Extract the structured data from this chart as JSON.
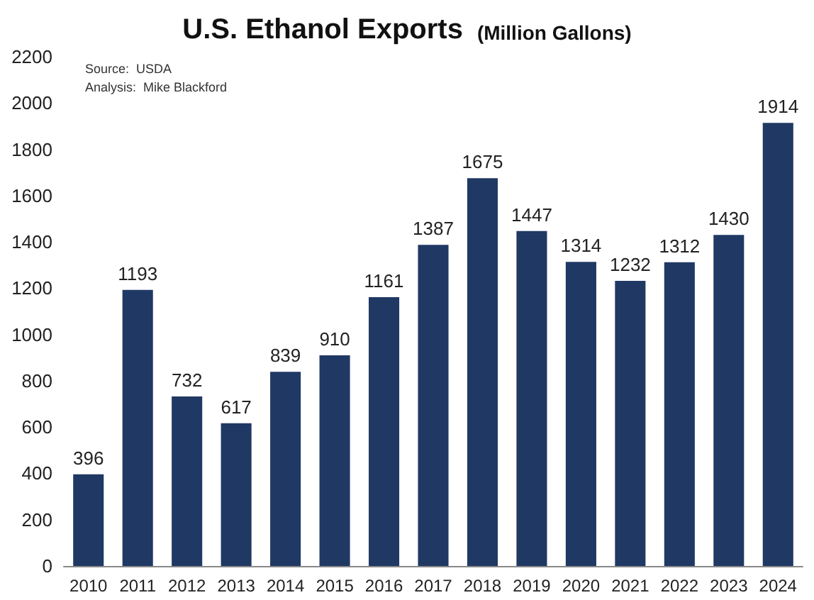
{
  "chart_data": {
    "type": "bar",
    "title": "U.S. Ethanol Exports",
    "subtitle": "(Million Gallons)",
    "annotations": [
      "Source:  USDA",
      "Analysis:  Mike Blackford"
    ],
    "categories": [
      "2010",
      "2011",
      "2012",
      "2013",
      "2014",
      "2015",
      "2016",
      "2017",
      "2018",
      "2019",
      "2020",
      "2021",
      "2022",
      "2023",
      "2024"
    ],
    "values": [
      396,
      1193,
      732,
      617,
      839,
      910,
      1161,
      1387,
      1675,
      1447,
      1314,
      1232,
      1312,
      1430,
      1914
    ],
    "color": "#203864",
    "ylim": [
      0,
      2200
    ],
    "yticks": [
      0,
      200,
      400,
      600,
      800,
      1000,
      1200,
      1400,
      1600,
      1800,
      2000,
      2200
    ],
    "grid": false,
    "data_labels": true
  }
}
